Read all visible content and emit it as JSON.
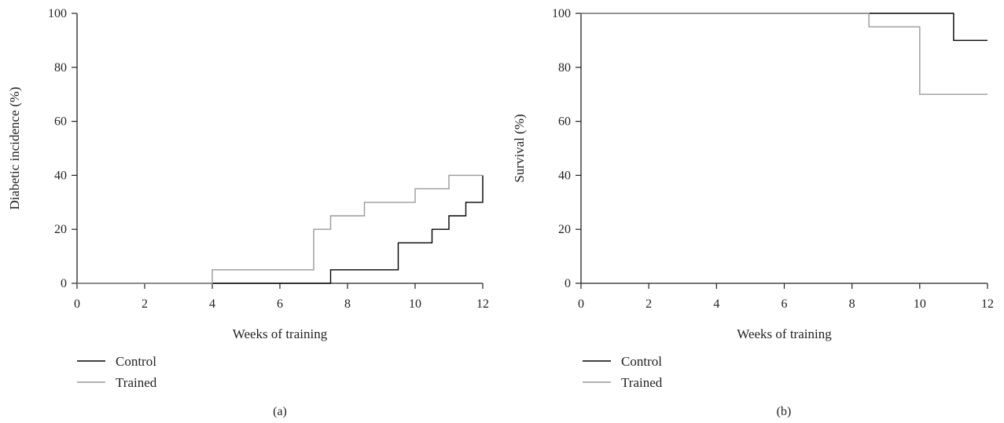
{
  "chart_data": [
    {
      "type": "line",
      "step": true,
      "panel_label": "(a)",
      "xlabel": "Weeks of training",
      "ylabel": "Diabetic incidence (%)",
      "xlim": [
        0,
        12
      ],
      "ylim": [
        0,
        100
      ],
      "xticks": [
        0,
        2,
        4,
        6,
        8,
        10,
        12
      ],
      "yticks": [
        0,
        20,
        40,
        60,
        80,
        100
      ],
      "grid": false,
      "legend_position": "bottom-left",
      "series": [
        {
          "name": "Control",
          "color": "#000000",
          "x": [
            0,
            7.5,
            9.5,
            10.5,
            11,
            11.5,
            12,
            12
          ],
          "y": [
            0,
            5,
            15,
            20,
            25,
            30,
            40,
            30
          ]
        },
        {
          "name": "Trained",
          "color": "#999999",
          "x": [
            0,
            4,
            7,
            7.5,
            8.5,
            10,
            11,
            12
          ],
          "y": [
            0,
            5,
            20,
            25,
            30,
            35,
            40,
            40
          ]
        }
      ]
    },
    {
      "type": "line",
      "step": true,
      "panel_label": "(b)",
      "xlabel": "Weeks of training",
      "ylabel": "Survival (%)",
      "xlim": [
        0,
        12
      ],
      "ylim": [
        0,
        100
      ],
      "xticks": [
        0,
        2,
        4,
        6,
        8,
        10,
        12
      ],
      "yticks": [
        0,
        20,
        40,
        60,
        80,
        100
      ],
      "grid": false,
      "legend_position": "bottom-left",
      "series": [
        {
          "name": "Control",
          "color": "#000000",
          "x": [
            0,
            11,
            12
          ],
          "y": [
            100,
            90,
            90
          ]
        },
        {
          "name": "Trained",
          "color": "#999999",
          "x": [
            0,
            8.5,
            10,
            12
          ],
          "y": [
            100,
            95,
            70,
            70
          ]
        }
      ]
    }
  ]
}
